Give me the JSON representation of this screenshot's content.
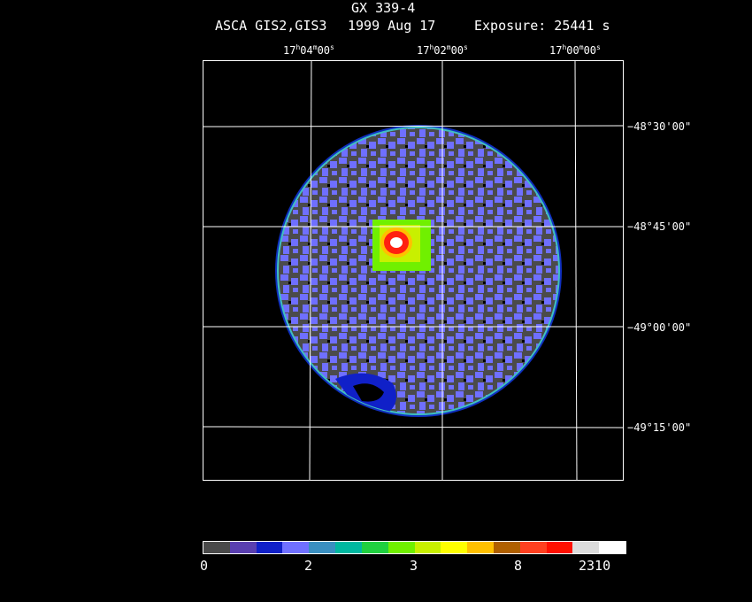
{
  "header": {
    "title": "GX 339-4",
    "instrument": "ASCA GIS2,GIS3",
    "date": "1999 Aug 17",
    "exposure": "Exposure: 25441 s"
  },
  "ra_ticks": [
    {
      "h": "17",
      "m": "04",
      "s": "00"
    },
    {
      "h": "17",
      "m": "02",
      "s": "00"
    },
    {
      "h": "17",
      "m": "00",
      "s": "00"
    }
  ],
  "dec_ticks": [
    "−48°30'00\"",
    "−48°45'00\"",
    "−49°00'00\"",
    "−49°15'00\""
  ],
  "colorbar": {
    "colors": [
      "#4a4a4a",
      "#5a3fb0",
      "#1020c8",
      "#7070ff",
      "#3a8fc0",
      "#00b8a0",
      "#20d040",
      "#70f000",
      "#c8f000",
      "#ffff00",
      "#ffc000",
      "#b06000",
      "#ff4020",
      "#ff1000",
      "#dcdcdc",
      "#ffffff"
    ],
    "labels": [
      "0",
      "2",
      "3",
      "8",
      "2310"
    ]
  }
}
